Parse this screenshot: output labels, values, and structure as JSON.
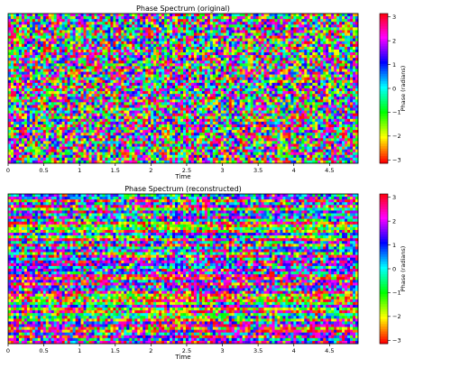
{
  "chart_data": [
    {
      "type": "heatmap",
      "title": "Phase Spectrum (original)",
      "xlabel": "Time",
      "ylabel": "",
      "xlim": [
        0,
        4.9
      ],
      "x_ticks": [
        {
          "value": 0,
          "label": "0"
        },
        {
          "value": 0.5,
          "label": "0.5"
        },
        {
          "value": 1,
          "label": "1"
        },
        {
          "value": 1.5,
          "label": "1.5"
        },
        {
          "value": 2,
          "label": "2"
        },
        {
          "value": 2.5,
          "label": "2.5"
        },
        {
          "value": 3,
          "label": "3"
        },
        {
          "value": 3.5,
          "label": "3.5"
        },
        {
          "value": 4,
          "label": "4"
        },
        {
          "value": 4.5,
          "label": "4.5"
        }
      ],
      "colorbar": {
        "label": "Phase (radians)",
        "cmap": "hsv",
        "range": [
          -3.14159,
          3.14159
        ],
        "ticks": [
          {
            "value": 3,
            "label": "3"
          },
          {
            "value": 2,
            "label": "2"
          },
          {
            "value": 1,
            "label": "1"
          },
          {
            "value": 0,
            "label": "0"
          },
          {
            "value": -1,
            "label": "−1"
          },
          {
            "value": -2,
            "label": "−2"
          },
          {
            "value": -3,
            "label": "−3"
          }
        ]
      },
      "pattern": "random"
    },
    {
      "type": "heatmap",
      "title": "Phase Spectrum (reconstructed)",
      "xlabel": "Time",
      "ylabel": "",
      "xlim": [
        0,
        4.9
      ],
      "x_ticks": [
        {
          "value": 0,
          "label": "0"
        },
        {
          "value": 0.5,
          "label": "0.5"
        },
        {
          "value": 1,
          "label": "1"
        },
        {
          "value": 1.5,
          "label": "1.5"
        },
        {
          "value": 2,
          "label": "2"
        },
        {
          "value": 2.5,
          "label": "2.5"
        },
        {
          "value": 3,
          "label": "3"
        },
        {
          "value": 3.5,
          "label": "3.5"
        },
        {
          "value": 4,
          "label": "4"
        },
        {
          "value": 4.5,
          "label": "4.5"
        }
      ],
      "colorbar": {
        "label": "Phase (radians)",
        "cmap": "hsv",
        "range": [
          -3.14159,
          3.14159
        ],
        "ticks": [
          {
            "value": 3,
            "label": "3"
          },
          {
            "value": 2,
            "label": "2"
          },
          {
            "value": 1,
            "label": "1"
          },
          {
            "value": 0,
            "label": "0"
          },
          {
            "value": -1,
            "label": "−1"
          },
          {
            "value": -2,
            "label": "−2"
          },
          {
            "value": -3,
            "label": "−3"
          }
        ]
      },
      "pattern": "streaky"
    }
  ]
}
